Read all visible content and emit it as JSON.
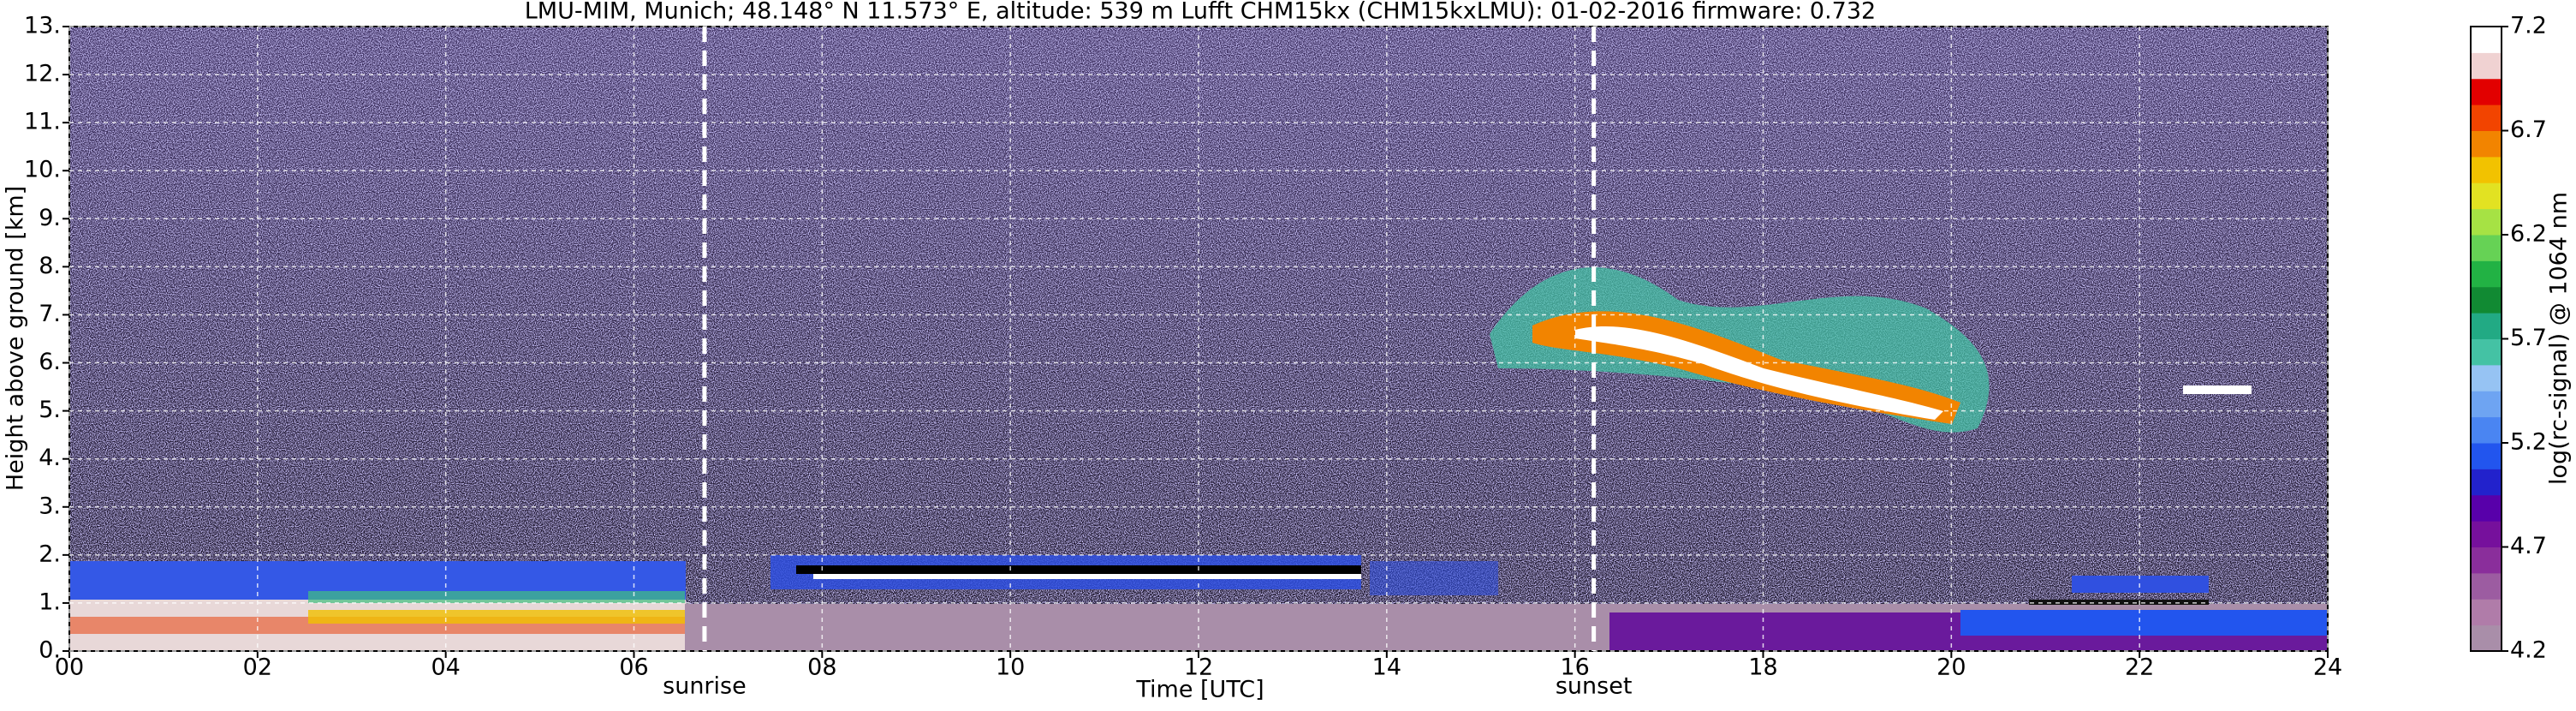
{
  "chart_data": {
    "type": "heatmap",
    "title": "LMU-MIM, Munich; 48.148° N 11.573° E, altitude: 539 m    Lufft CHM15kx (CHM15kxLMU): 01-02-2016    firmware: 0.732",
    "x_label": "Time [UTC]",
    "y_label": "Height above ground [km]",
    "colorbar_label": "log(rc-signal) @ 1064 nm",
    "xlim": [
      0,
      24
    ],
    "xticks": [
      {
        "value": 0,
        "label": "00"
      },
      {
        "value": 2,
        "label": "02"
      },
      {
        "value": 4,
        "label": "04"
      },
      {
        "value": 6,
        "label": "06"
      },
      {
        "value": 8,
        "label": "08"
      },
      {
        "value": 10,
        "label": "10"
      },
      {
        "value": 12,
        "label": "12"
      },
      {
        "value": 14,
        "label": "14"
      },
      {
        "value": 16,
        "label": "16"
      },
      {
        "value": 18,
        "label": "18"
      },
      {
        "value": 20,
        "label": "20"
      },
      {
        "value": 22,
        "label": "22"
      },
      {
        "value": 24,
        "label": "24"
      }
    ],
    "ylim": [
      0,
      13
    ],
    "yticks": [
      {
        "value": 0,
        "label": "0."
      },
      {
        "value": 1,
        "label": "1."
      },
      {
        "value": 2,
        "label": "2."
      },
      {
        "value": 3,
        "label": "3."
      },
      {
        "value": 4,
        "label": "4."
      },
      {
        "value": 5,
        "label": "5."
      },
      {
        "value": 6,
        "label": "6."
      },
      {
        "value": 7,
        "label": "7."
      },
      {
        "value": 8,
        "label": "8."
      },
      {
        "value": 9,
        "label": "9."
      },
      {
        "value": 10,
        "label": "10."
      },
      {
        "value": 11,
        "label": "11."
      },
      {
        "value": 12,
        "label": "12."
      },
      {
        "value": 13,
        "label": "13."
      }
    ],
    "clim": [
      4.2,
      7.2
    ],
    "cticks": [
      4.2,
      4.7,
      5.2,
      5.7,
      6.2,
      6.7,
      7.2
    ],
    "colormap": [
      "#a98ea9",
      "#b07ca9",
      "#9c5ca1",
      "#8a2e9b",
      "#76109c",
      "#5800aa",
      "#2222cc",
      "#2255ee",
      "#4a85f2",
      "#6ea4f2",
      "#96c3f3",
      "#44c2a4",
      "#22aa84",
      "#118a33",
      "#22b244",
      "#66d255",
      "#a6e244",
      "#e2e222",
      "#f2c200",
      "#f28400",
      "#f24400",
      "#e20000",
      "#f0d2d2",
      "#ffffff"
    ],
    "grid": true,
    "annotations": [
      {
        "text": "sunrise",
        "x": 6.75
      },
      {
        "text": "sunset",
        "x": 16.2
      }
    ]
  }
}
